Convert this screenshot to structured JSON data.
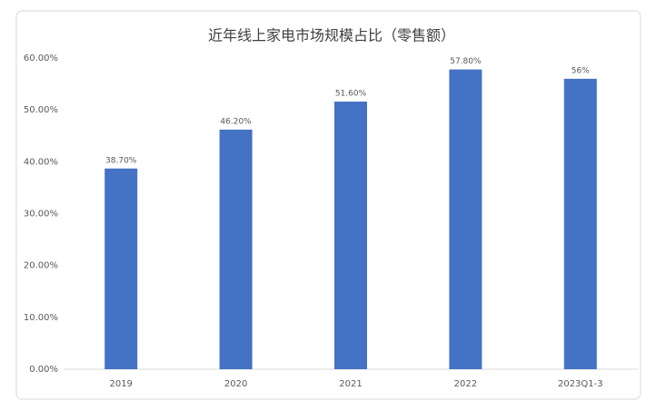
{
  "chart_data": {
    "type": "bar",
    "title": "近年线上家电市场规模占比（零售额）",
    "categories": [
      "2019",
      "2020",
      "2021",
      "2022",
      "2023Q1-3"
    ],
    "values": [
      38.7,
      46.2,
      51.6,
      57.8,
      56
    ],
    "value_labels": [
      "38.70%",
      "46.20%",
      "51.60%",
      "57.80%",
      "56%"
    ],
    "color": "#4472c4",
    "ylim": [
      0,
      60
    ],
    "yticks": [
      {
        "value": 0,
        "label": "0.00%"
      },
      {
        "value": 10,
        "label": "10.00%"
      },
      {
        "value": 20,
        "label": "20.00%"
      },
      {
        "value": 30,
        "label": "30.00%"
      },
      {
        "value": 40,
        "label": "40.00%"
      },
      {
        "value": 50,
        "label": "50.00%"
      },
      {
        "value": 60,
        "label": "60.00%"
      }
    ],
    "grid": false
  }
}
